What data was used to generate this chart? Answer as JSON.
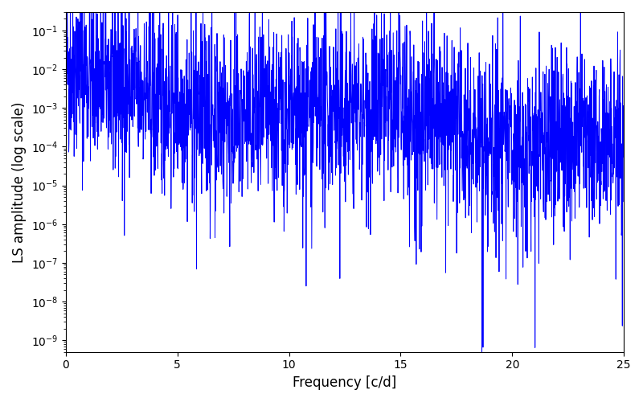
{
  "xlabel": "Frequency [c/d]",
  "ylabel": "LS amplitude (log scale)",
  "line_color": "#0000FF",
  "line_width": 0.7,
  "xlim": [
    0,
    25
  ],
  "ylim": [
    5e-10,
    0.3
  ],
  "yscale": "log",
  "figsize": [
    8.0,
    5.0
  ],
  "dpi": 100,
  "seed": 42,
  "n_freq": 2500,
  "freq_max": 25.0,
  "background_color": "#ffffff"
}
